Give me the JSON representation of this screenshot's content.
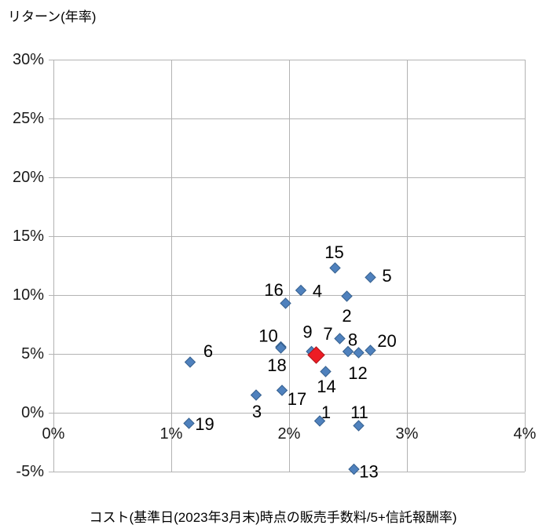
{
  "header": {
    "chart_title": "リターン(年率)"
  },
  "chart_data": {
    "type": "scatter",
    "title": "リターン(年率)",
    "xlabel": "コスト(基準日(2023年3月末)時点の販売手数料/5+信託報酬率)",
    "ylabel": "リターン(年率)",
    "xlim": [
      0,
      4
    ],
    "ylim": [
      -5,
      30
    ],
    "grid": true,
    "legend": "none",
    "x_ticks": [
      {
        "value": 0,
        "label": "0%"
      },
      {
        "value": 1,
        "label": "1%"
      },
      {
        "value": 2,
        "label": "2%"
      },
      {
        "value": 3,
        "label": "3%"
      },
      {
        "value": 4,
        "label": "4%"
      }
    ],
    "y_ticks": [
      {
        "value": 30,
        "label": "30%"
      },
      {
        "value": 25,
        "label": "25%"
      },
      {
        "value": 20,
        "label": "20%"
      },
      {
        "value": 15,
        "label": "15%"
      },
      {
        "value": 10,
        "label": "10%"
      },
      {
        "value": 5,
        "label": "5%"
      },
      {
        "value": 0,
        "label": "0%"
      },
      {
        "value": -5,
        "label": "-5%"
      }
    ],
    "series": [
      {
        "name": "funds",
        "marker": "diamond",
        "color": "#4F81BD",
        "stroke": "#36608F",
        "points": [
          {
            "label": "1",
            "x": 2.26,
            "y": -0.7,
            "label_dx": 8,
            "label_dy": -11
          },
          {
            "label": "2",
            "x": 2.49,
            "y": 9.9,
            "label_dx": 0,
            "label_dy": 25
          },
          {
            "label": "3",
            "x": 1.72,
            "y": 1.5,
            "label_dx": 1,
            "label_dy": 21
          },
          {
            "label": "4",
            "x": 2.1,
            "y": 10.4,
            "label_dx": 21,
            "label_dy": 1
          },
          {
            "label": "5",
            "x": 2.69,
            "y": 11.5,
            "label_dx": 21,
            "label_dy": -2
          },
          {
            "label": "6",
            "x": 1.16,
            "y": 4.3,
            "label_dx": 23,
            "label_dy": -14
          },
          {
            "label": "7",
            "x": 2.43,
            "y": 6.3,
            "label_dx": -15,
            "label_dy": -6
          },
          {
            "label": "8",
            "x": 2.5,
            "y": 5.2,
            "label_dx": 6,
            "label_dy": -15
          },
          {
            "label": "9",
            "x": 2.19,
            "y": 5.2,
            "label_dx": -5,
            "label_dy": -25
          },
          {
            "label": "10",
            "x": 1.93,
            "y": 5.6,
            "label_dx": -16,
            "label_dy": -14
          },
          {
            "label": "11",
            "x": 2.59,
            "y": -1.1,
            "label_dx": 1,
            "label_dy": -17
          },
          {
            "label": "12",
            "x": 2.59,
            "y": 5.1,
            "label_dx": -1,
            "label_dy": 26
          },
          {
            "label": "13",
            "x": 2.55,
            "y": -4.8,
            "label_dx": 19,
            "label_dy": 3
          },
          {
            "label": "14",
            "x": 2.31,
            "y": 3.5,
            "label_dx": 1,
            "label_dy": 19
          },
          {
            "label": "15",
            "x": 2.39,
            "y": 12.3,
            "label_dx": -1,
            "label_dy": -20
          },
          {
            "label": "16",
            "x": 1.97,
            "y": 9.3,
            "label_dx": -15,
            "label_dy": -17
          },
          {
            "label": "17",
            "x": 1.94,
            "y": 1.9,
            "label_dx": 19,
            "label_dy": 11
          },
          {
            "label": "18",
            "x": 1.93,
            "y": 5.5,
            "label_dx": -5,
            "label_dy": 22
          },
          {
            "label": "19",
            "x": 1.15,
            "y": -0.9,
            "label_dx": 20,
            "label_dy": 1
          },
          {
            "label": "20",
            "x": 2.69,
            "y": 5.3,
            "label_dx": 21,
            "label_dy": -12
          }
        ]
      },
      {
        "name": "highlight-fund",
        "marker": "diamond",
        "color": "#ED1C24",
        "stroke": "#B01218",
        "points": [
          {
            "label": "",
            "x": 2.23,
            "y": 4.9,
            "label_dx": 0,
            "label_dy": 0
          }
        ]
      }
    ],
    "colors": {
      "gridline": "#B3B3B3",
      "tick_text": "#1a1a1a",
      "label_text": "#000000",
      "point_blue": "#4F81BD",
      "point_red": "#ED1C24"
    }
  },
  "footer": {
    "x_axis_title": "コスト(基準日(2023年3月末)時点の販売手数料/5+信託報酬率)"
  }
}
